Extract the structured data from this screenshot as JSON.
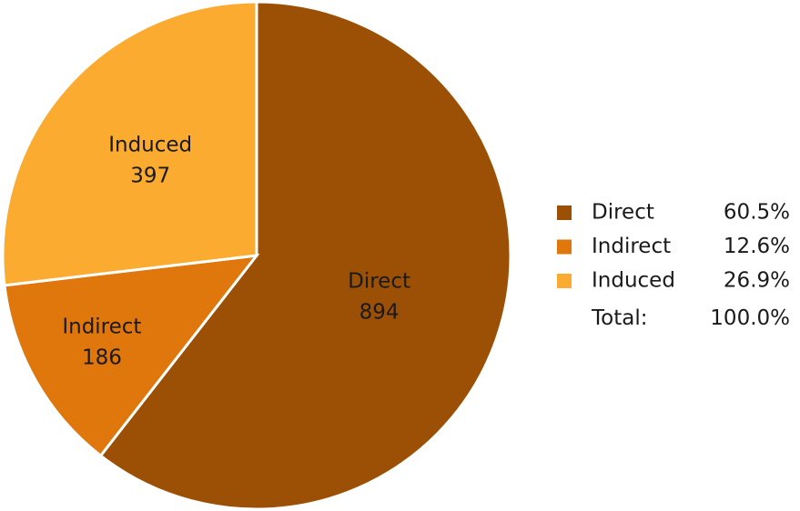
{
  "chart_data": {
    "type": "pie",
    "categories": [
      "Direct",
      "Indirect",
      "Induced"
    ],
    "values": [
      894,
      186,
      397
    ],
    "colors": [
      "#9c5006",
      "#e0770c",
      "#fbac30"
    ],
    "legend": "right",
    "legend_values": [
      "60.5%",
      "12.6%",
      "26.9%"
    ],
    "total_label": "Total:",
    "total_value": "100.0%"
  }
}
